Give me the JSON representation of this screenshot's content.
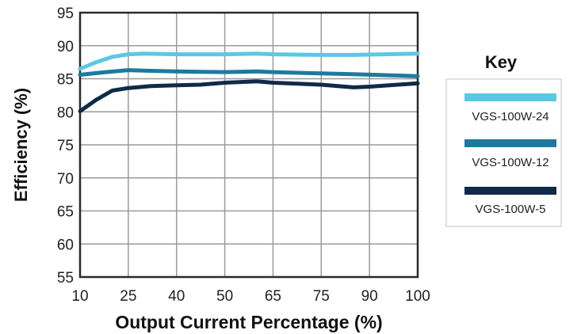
{
  "chart_data": {
    "type": "line",
    "xlabel": "Output Current Percentage (%)",
    "ylabel": "Efficiency (%)",
    "x_ticks": [
      "10",
      "25",
      "40",
      "50",
      "65",
      "75",
      "90",
      "100"
    ],
    "y_ticks": [
      55,
      60,
      65,
      70,
      75,
      80,
      85,
      90,
      95
    ],
    "ylim": [
      55,
      95
    ],
    "grid": true,
    "legend_title": "Key",
    "legend_position": "right",
    "series": [
      {
        "name": "VGS-100W-24",
        "color": "#5bc8e3",
        "x": [
          10,
          15,
          20,
          25,
          30,
          40,
          50,
          60,
          65,
          75,
          85,
          100
        ],
        "y": [
          86.5,
          87.5,
          88.3,
          88.7,
          88.8,
          88.7,
          88.7,
          88.8,
          88.7,
          88.6,
          88.6,
          88.8
        ]
      },
      {
        "name": "VGS-100W-12",
        "color": "#1d7a9e",
        "x": [
          10,
          18,
          25,
          32,
          40,
          50,
          60,
          65,
          75,
          85,
          100
        ],
        "y": [
          85.6,
          86.0,
          86.3,
          86.2,
          86.1,
          86.0,
          86.1,
          86.0,
          85.8,
          85.7,
          85.4
        ]
      },
      {
        "name": "VGS-100W-5",
        "color": "#0f2b48",
        "x": [
          10,
          15,
          20,
          25,
          32,
          40,
          45,
          50,
          60,
          65,
          75,
          85,
          90,
          100
        ],
        "y": [
          80.1,
          81.8,
          83.2,
          83.6,
          83.9,
          84.0,
          84.1,
          84.4,
          84.6,
          84.4,
          84.1,
          83.7,
          83.8,
          84.3
        ]
      }
    ]
  }
}
